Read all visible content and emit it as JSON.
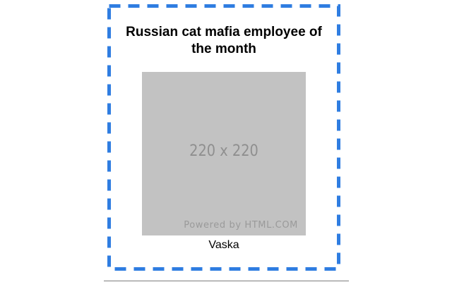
{
  "card": {
    "title": "Russian cat mafia employee of the month",
    "image": {
      "size_label": "220 x 220",
      "watermark": "Powered by HTML.COM"
    },
    "caption": "Vaska"
  },
  "colors": {
    "border": "#2f7de1",
    "placeholder_bg": "#c2c2c2",
    "placeholder_text": "#8f8f8f"
  }
}
